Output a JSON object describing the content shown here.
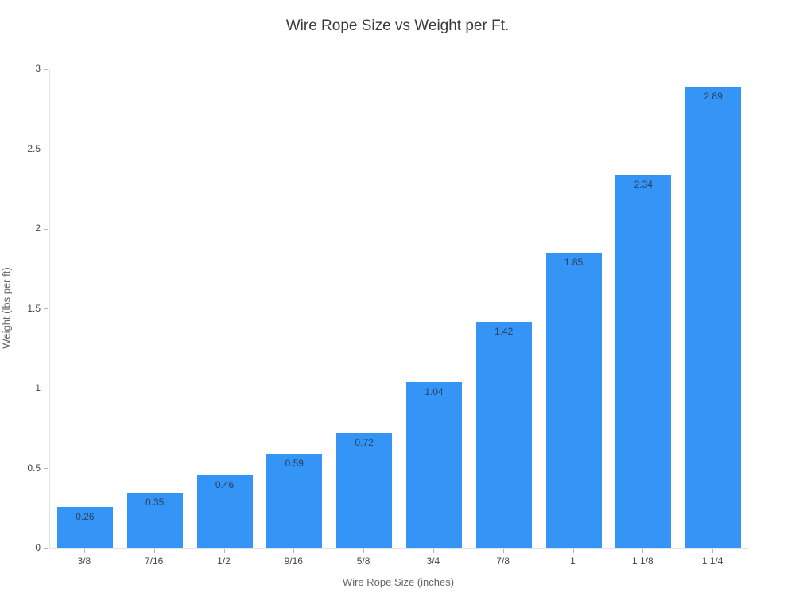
{
  "chart_data": {
    "type": "bar",
    "title": "Wire Rope Size vs Weight per Ft.",
    "xlabel": "Wire Rope Size (inches)",
    "ylabel": "Weight (lbs per ft)",
    "categories": [
      "3/8",
      "7/16",
      "1/2",
      "9/16",
      "5/8",
      "3/4",
      "7/8",
      "1",
      "1 1/8",
      "1 1/4"
    ],
    "values": [
      0.26,
      0.35,
      0.46,
      0.59,
      0.72,
      1.04,
      1.42,
      1.85,
      2.34,
      2.89
    ],
    "value_labels": [
      "0.26",
      "0.35",
      "0.46",
      "0.59",
      "0.72",
      "1.04",
      "1.42",
      "1.85",
      "2.34",
      "2.89"
    ],
    "ylim": [
      0,
      3
    ],
    "yticks": [
      0,
      0.5,
      1,
      1.5,
      2,
      2.5,
      3
    ],
    "ytick_labels": [
      "0",
      "0.5",
      "1",
      "1.5",
      "2",
      "2.5",
      "3"
    ],
    "grid": false,
    "legend": null,
    "colors": {
      "bar": "#3495f6",
      "value_label": "#2a3f5f",
      "axis_line": "#e2e2e2",
      "tick_mark": "#b8b8b8",
      "tick_label": "#444444",
      "title": "#3a3a3a",
      "axis_title": "#666666",
      "background": "#ffffff"
    }
  }
}
